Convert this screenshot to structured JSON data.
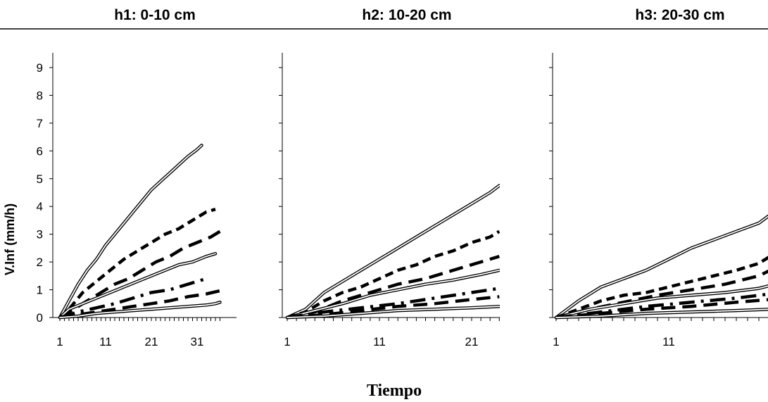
{
  "chart_data": {
    "type": "line",
    "ylabel": "V.Inf  (mm/h)",
    "xlabel": "Tiempo",
    "ylim": [
      0,
      9
    ],
    "yticks": [
      "0",
      "1",
      "2",
      "3",
      "4",
      "5",
      "6",
      "7",
      "8",
      "9"
    ],
    "grid": false,
    "panels": [
      {
        "title": "h1: 0-10 cm",
        "xticks": [
          "1",
          "11",
          "21",
          "31"
        ],
        "xlim": [
          1,
          36
        ],
        "series": [
          {
            "style": "double",
            "x": [
              1,
              3,
              5,
              7,
              9,
              11,
              13,
              15,
              17,
              19,
              21,
              23,
              25,
              27,
              29,
              31,
              32
            ],
            "y": [
              0,
              0.6,
              1.2,
              1.7,
              2.1,
              2.6,
              3.0,
              3.4,
              3.8,
              4.2,
              4.6,
              4.9,
              5.2,
              5.5,
              5.8,
              6.05,
              6.2
            ]
          },
          {
            "style": "dash",
            "x": [
              1,
              3,
              6,
              9,
              12,
              15,
              18,
              21,
              24,
              27,
              30,
              33,
              35
            ],
            "y": [
              0,
              0.3,
              0.9,
              1.3,
              1.7,
              2.1,
              2.4,
              2.7,
              3.0,
              3.2,
              3.5,
              3.8,
              3.9
            ]
          },
          {
            "style": "longdash",
            "x": [
              1,
              4,
              7,
              10,
              13,
              16,
              19,
              22,
              25,
              28,
              31,
              34,
              36
            ],
            "y": [
              0,
              0.3,
              0.6,
              0.9,
              1.2,
              1.4,
              1.7,
              2.0,
              2.2,
              2.5,
              2.7,
              2.9,
              3.1
            ]
          },
          {
            "style": "double",
            "x": [
              1,
              3,
              6,
              9,
              12,
              15,
              18,
              21,
              24,
              27,
              30,
              33,
              35
            ],
            "y": [
              0,
              0.3,
              0.5,
              0.7,
              0.9,
              1.1,
              1.3,
              1.5,
              1.7,
              1.9,
              2.0,
              2.2,
              2.3
            ]
          },
          {
            "style": "dashdot",
            "x": [
              1,
              5,
              9,
              13,
              17,
              21,
              25,
              29,
              33
            ],
            "y": [
              0,
              0.2,
              0.35,
              0.5,
              0.7,
              0.9,
              1.0,
              1.2,
              1.4
            ]
          },
          {
            "style": "longdash",
            "x": [
              1,
              5,
              9,
              13,
              17,
              21,
              25,
              29,
              33,
              37
            ],
            "y": [
              0,
              0.1,
              0.2,
              0.3,
              0.4,
              0.5,
              0.6,
              0.75,
              0.85,
              1.0
            ]
          },
          {
            "style": "double",
            "x": [
              1,
              5,
              9,
              13,
              17,
              21,
              25,
              29,
              33,
              35,
              36
            ],
            "y": [
              0,
              0.05,
              0.15,
              0.2,
              0.25,
              0.3,
              0.35,
              0.4,
              0.45,
              0.5,
              0.55
            ]
          }
        ]
      },
      {
        "title": "h2: 10-20 cm",
        "xticks": [
          "1",
          "11",
          "21"
        ],
        "xlim": [
          1,
          24
        ],
        "series": [
          {
            "style": "double",
            "x": [
              1,
              3,
              5,
              7,
              9,
              11,
              13,
              15,
              17,
              19,
              21,
              23,
              24
            ],
            "y": [
              0,
              0.3,
              0.9,
              1.3,
              1.7,
              2.1,
              2.5,
              2.9,
              3.3,
              3.7,
              4.1,
              4.5,
              4.75
            ]
          },
          {
            "style": "dash",
            "x": [
              1,
              3,
              5,
              7,
              9,
              11,
              13,
              15,
              17,
              19,
              21,
              23,
              24
            ],
            "y": [
              0,
              0.2,
              0.6,
              0.9,
              1.1,
              1.4,
              1.7,
              1.9,
              2.2,
              2.4,
              2.7,
              2.9,
              3.1
            ]
          },
          {
            "style": "longdash",
            "x": [
              1,
              4,
              7,
              10,
              13,
              16,
              19,
              22,
              24
            ],
            "y": [
              0,
              0.2,
              0.6,
              0.9,
              1.2,
              1.4,
              1.7,
              2.0,
              2.2
            ]
          },
          {
            "style": "double",
            "x": [
              1,
              4,
              7,
              10,
              13,
              16,
              19,
              22,
              24
            ],
            "y": [
              0,
              0.25,
              0.5,
              0.8,
              1.0,
              1.2,
              1.35,
              1.55,
              1.7
            ]
          },
          {
            "style": "dashdot",
            "x": [
              1,
              5,
              9,
              13,
              17,
              21,
              24
            ],
            "y": [
              0,
              0.2,
              0.35,
              0.5,
              0.7,
              0.9,
              1.05
            ]
          },
          {
            "style": "longdash",
            "x": [
              1,
              5,
              9,
              13,
              17,
              21,
              24
            ],
            "y": [
              0,
              0.1,
              0.25,
              0.4,
              0.5,
              0.65,
              0.75
            ]
          },
          {
            "style": "double",
            "x": [
              1,
              5,
              9,
              13,
              17,
              21,
              24
            ],
            "y": [
              0,
              0.05,
              0.15,
              0.25,
              0.3,
              0.35,
              0.4
            ]
          }
        ]
      },
      {
        "title": "h3: 20-30 cm",
        "xticks": [
          "1",
          "11"
        ],
        "xlim": [
          1,
          20
        ],
        "series": [
          {
            "style": "double",
            "x": [
              1,
              3,
              5,
              7,
              9,
              11,
              13,
              15,
              17,
              19,
              20
            ],
            "y": [
              0,
              0.6,
              1.1,
              1.4,
              1.7,
              2.1,
              2.5,
              2.8,
              3.1,
              3.4,
              3.7
            ]
          },
          {
            "style": "dash",
            "x": [
              1,
              3,
              5,
              7,
              9,
              11,
              13,
              15,
              17,
              19,
              20
            ],
            "y": [
              0,
              0.3,
              0.6,
              0.8,
              0.9,
              1.1,
              1.3,
              1.5,
              1.7,
              1.95,
              2.2
            ]
          },
          {
            "style": "longdash",
            "x": [
              1,
              4,
              7,
              10,
              13,
              16,
              19,
              20
            ],
            "y": [
              0,
              0.3,
              0.55,
              0.8,
              1.0,
              1.2,
              1.5,
              1.7
            ]
          },
          {
            "style": "double",
            "x": [
              1,
              4,
              7,
              10,
              13,
              16,
              19,
              20
            ],
            "y": [
              0,
              0.3,
              0.5,
              0.7,
              0.8,
              0.9,
              1.05,
              1.15
            ]
          },
          {
            "style": "dashdot",
            "x": [
              1,
              5,
              9,
              13,
              17,
              20
            ],
            "y": [
              0,
              0.2,
              0.4,
              0.55,
              0.7,
              0.85
            ]
          },
          {
            "style": "longdash",
            "x": [
              1,
              5,
              9,
              13,
              17,
              20
            ],
            "y": [
              0,
              0.15,
              0.3,
              0.4,
              0.55,
              0.65
            ]
          },
          {
            "style": "double",
            "x": [
              1,
              5,
              9,
              13,
              17,
              20
            ],
            "y": [
              0,
              0.05,
              0.15,
              0.2,
              0.25,
              0.3
            ]
          }
        ]
      }
    ]
  },
  "colors": {
    "line": "#000000",
    "background": "#ffffff"
  }
}
